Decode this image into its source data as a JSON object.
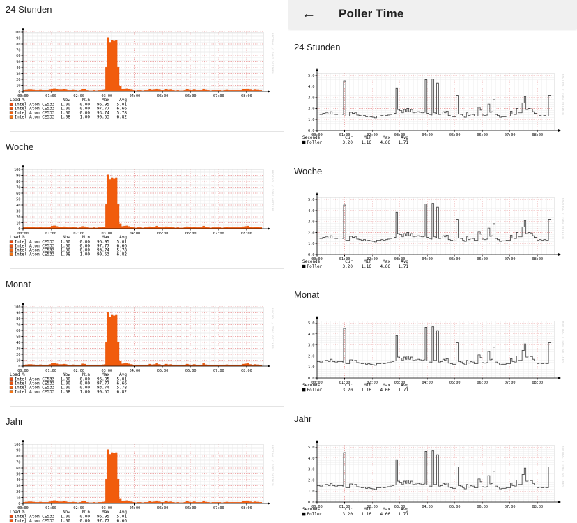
{
  "left_column": {
    "sections": [
      {
        "label": "24 Stunden"
      },
      {
        "label": "Woche"
      },
      {
        "label": "Monat"
      },
      {
        "label": "Jahr"
      }
    ]
  },
  "right_column": {
    "header": {
      "title": "Poller Time"
    },
    "sections": [
      {
        "label": "24 Stunden"
      },
      {
        "label": "Woche"
      },
      {
        "label": "Monat"
      },
      {
        "label": "Jahr"
      }
    ]
  },
  "icons": {
    "back": "←"
  },
  "chart_data": [
    {
      "id": "cpu-load",
      "type": "area",
      "title": "",
      "legend_title": "Load %",
      "legend_columns": [
        "Now",
        "Min",
        "Max",
        "Avg"
      ],
      "legend_rows": [
        {
          "name": "Intel Atom CE533",
          "color": "#e9490e",
          "values": [
            "1.00",
            "0.00",
            "96.95",
            "5.01"
          ]
        },
        {
          "name": "Intel Atom CE533",
          "color": "#ee5410",
          "values": [
            "1.00",
            "0.00",
            "97.77",
            "6.66"
          ]
        },
        {
          "name": "Intel Atom CE533",
          "color": "#f16312",
          "values": [
            "1.00",
            "0.00",
            "93.74",
            "5.78"
          ]
        },
        {
          "name": "Intel Atom CE533",
          "color": "#f57717",
          "values": [
            "1.08",
            "1.00",
            "90.53",
            "6.82"
          ]
        }
      ],
      "fill_color": "#f15c0d",
      "ylim": [
        0,
        100
      ],
      "yticks": [
        0,
        10,
        20,
        30,
        40,
        50,
        60,
        70,
        80,
        90,
        100
      ],
      "x_range_hours": [
        0,
        8.6
      ],
      "xtick_labels": [
        "00:00",
        "01:00",
        "02:00",
        "03:00",
        "04:00",
        "05:00",
        "06:00",
        "07:00",
        "08:00"
      ],
      "grid": true,
      "legend_position": "bottom",
      "watermark": "RRDTOOL / TOBI OETIKER",
      "points": [
        [
          0.0,
          2
        ],
        [
          0.08,
          2.5
        ],
        [
          0.17,
          3
        ],
        [
          0.25,
          3
        ],
        [
          0.33,
          2.5
        ],
        [
          0.42,
          2
        ],
        [
          0.5,
          2
        ],
        [
          0.58,
          2.5
        ],
        [
          0.67,
          2
        ],
        [
          0.75,
          2
        ],
        [
          0.83,
          2
        ],
        [
          0.92,
          3
        ],
        [
          1.0,
          4.5
        ],
        [
          1.08,
          5
        ],
        [
          1.17,
          4
        ],
        [
          1.25,
          3
        ],
        [
          1.33,
          3
        ],
        [
          1.42,
          3.5
        ],
        [
          1.5,
          3
        ],
        [
          1.58,
          2
        ],
        [
          1.67,
          2
        ],
        [
          1.75,
          2.5
        ],
        [
          1.83,
          2
        ],
        [
          1.92,
          1.5
        ],
        [
          2.0,
          2
        ],
        [
          2.08,
          4
        ],
        [
          2.17,
          3.5
        ],
        [
          2.25,
          2
        ],
        [
          2.33,
          1.5
        ],
        [
          2.42,
          1.5
        ],
        [
          2.5,
          2
        ],
        [
          2.58,
          1.5
        ],
        [
          2.67,
          2
        ],
        [
          2.75,
          2
        ],
        [
          2.83,
          2.5
        ],
        [
          2.9,
          3
        ],
        [
          2.95,
          41
        ],
        [
          3.0,
          91
        ],
        [
          3.08,
          83
        ],
        [
          3.15,
          86
        ],
        [
          3.22,
          85
        ],
        [
          3.3,
          86
        ],
        [
          3.37,
          41
        ],
        [
          3.44,
          8.5
        ],
        [
          3.52,
          4
        ],
        [
          3.6,
          4.5
        ],
        [
          3.68,
          5
        ],
        [
          3.75,
          4
        ],
        [
          3.83,
          3
        ],
        [
          3.92,
          2
        ],
        [
          4.0,
          1.5
        ],
        [
          4.08,
          2
        ],
        [
          4.17,
          2
        ],
        [
          4.25,
          1.5
        ],
        [
          4.33,
          2
        ],
        [
          4.42,
          2
        ],
        [
          4.5,
          3.5
        ],
        [
          4.58,
          2.5
        ],
        [
          4.67,
          3
        ],
        [
          4.75,
          4.5
        ],
        [
          4.83,
          3
        ],
        [
          4.92,
          2
        ],
        [
          5.0,
          2
        ],
        [
          5.08,
          3.5
        ],
        [
          5.17,
          2.5
        ],
        [
          5.25,
          3
        ],
        [
          5.33,
          2
        ],
        [
          5.42,
          1.5
        ],
        [
          5.5,
          2
        ],
        [
          5.58,
          1.5
        ],
        [
          5.67,
          1.5
        ],
        [
          5.75,
          2
        ],
        [
          5.83,
          3.5
        ],
        [
          5.92,
          2.5
        ],
        [
          6.0,
          2
        ],
        [
          6.08,
          3
        ],
        [
          6.17,
          2
        ],
        [
          6.25,
          2
        ],
        [
          6.33,
          2
        ],
        [
          6.42,
          4.5
        ],
        [
          6.5,
          2.5
        ],
        [
          6.58,
          2
        ],
        [
          6.67,
          1.5
        ],
        [
          6.75,
          2
        ],
        [
          6.83,
          2
        ],
        [
          6.92,
          2
        ],
        [
          7.0,
          2
        ],
        [
          7.08,
          1.5
        ],
        [
          7.17,
          2
        ],
        [
          7.25,
          2.5
        ],
        [
          7.33,
          2
        ],
        [
          7.42,
          2
        ],
        [
          7.5,
          2
        ],
        [
          7.58,
          2
        ],
        [
          7.67,
          2
        ],
        [
          7.75,
          2
        ],
        [
          7.83,
          3.5
        ],
        [
          7.92,
          4
        ],
        [
          8.0,
          4.5
        ],
        [
          8.08,
          3
        ],
        [
          8.17,
          2
        ],
        [
          8.25,
          3
        ],
        [
          8.33,
          2.5
        ],
        [
          8.42,
          2
        ],
        [
          8.5,
          2
        ]
      ]
    },
    {
      "id": "poller-time",
      "type": "line",
      "title": "",
      "legend_title": "Seconds",
      "legend_columns": [
        "Cur",
        "Min",
        "Max",
        "Avg"
      ],
      "legend_rows": [
        {
          "name": "Poller",
          "color": "#000000",
          "values": [
            "3.20",
            "1.16",
            "4.66",
            "1.71"
          ]
        }
      ],
      "line_color": "#3c3c3c",
      "ylim": [
        0,
        5.2
      ],
      "yticks": [
        "0.0",
        "1.0",
        "2.0",
        "3.0",
        "4.0",
        "5.0"
      ],
      "x_range_hours": [
        0,
        8.6
      ],
      "xtick_labels": [
        "00:00",
        "01:00",
        "02:00",
        "03:00",
        "04:00",
        "05:00",
        "06:00",
        "07:00",
        "08:00"
      ],
      "grid": true,
      "legend_position": "bottom",
      "watermark": "RRDTOOL / TOBI OETIKER",
      "points": [
        [
          0.0,
          1.5
        ],
        [
          0.1,
          1.45
        ],
        [
          0.2,
          1.55
        ],
        [
          0.3,
          1.6
        ],
        [
          0.4,
          1.5
        ],
        [
          0.48,
          1.7
        ],
        [
          0.55,
          1.5
        ],
        [
          0.65,
          1.45
        ],
        [
          0.75,
          1.5
        ],
        [
          0.85,
          1.5
        ],
        [
          0.93,
          1.45
        ],
        [
          0.96,
          4.5
        ],
        [
          1.04,
          1.3
        ],
        [
          1.12,
          1.3
        ],
        [
          1.18,
          1.65
        ],
        [
          1.28,
          1.55
        ],
        [
          1.36,
          1.6
        ],
        [
          1.44,
          1.4
        ],
        [
          1.52,
          1.35
        ],
        [
          1.6,
          1.3
        ],
        [
          1.68,
          1.35
        ],
        [
          1.76,
          1.25
        ],
        [
          1.84,
          1.3
        ],
        [
          1.92,
          1.25
        ],
        [
          2.0,
          1.2
        ],
        [
          2.08,
          1.15
        ],
        [
          2.16,
          1.3
        ],
        [
          2.24,
          1.3
        ],
        [
          2.32,
          1.35
        ],
        [
          2.4,
          1.3
        ],
        [
          2.48,
          1.35
        ],
        [
          2.56,
          1.4
        ],
        [
          2.64,
          1.45
        ],
        [
          2.72,
          1.5
        ],
        [
          2.8,
          1.55
        ],
        [
          2.86,
          3.85
        ],
        [
          2.92,
          1.9
        ],
        [
          3.0,
          1.8
        ],
        [
          3.08,
          1.6
        ],
        [
          3.14,
          1.9
        ],
        [
          3.2,
          1.7
        ],
        [
          3.26,
          2.0
        ],
        [
          3.33,
          1.7
        ],
        [
          3.4,
          1.9
        ],
        [
          3.47,
          1.6
        ],
        [
          3.55,
          1.65
        ],
        [
          3.63,
          1.7
        ],
        [
          3.71,
          1.65
        ],
        [
          3.79,
          1.6
        ],
        [
          3.87,
          1.65
        ],
        [
          3.92,
          4.6
        ],
        [
          3.99,
          1.55
        ],
        [
          4.06,
          1.45
        ],
        [
          4.13,
          1.4
        ],
        [
          4.17,
          4.65
        ],
        [
          4.24,
          1.6
        ],
        [
          4.3,
          1.55
        ],
        [
          4.34,
          4.3
        ],
        [
          4.41,
          1.45
        ],
        [
          4.49,
          1.5
        ],
        [
          4.56,
          1.7
        ],
        [
          4.62,
          1.6
        ],
        [
          4.68,
          1.75
        ],
        [
          4.76,
          1.35
        ],
        [
          4.84,
          1.3
        ],
        [
          4.92,
          1.25
        ],
        [
          5.0,
          1.25
        ],
        [
          5.05,
          3.2
        ],
        [
          5.12,
          1.5
        ],
        [
          5.2,
          1.45
        ],
        [
          5.28,
          1.3
        ],
        [
          5.34,
          1.2
        ],
        [
          5.42,
          1.6
        ],
        [
          5.48,
          1.35
        ],
        [
          5.56,
          1.5
        ],
        [
          5.62,
          1.45
        ],
        [
          5.7,
          1.3
        ],
        [
          5.78,
          1.3
        ],
        [
          5.84,
          2.1
        ],
        [
          5.92,
          1.85
        ],
        [
          5.98,
          1.4
        ],
        [
          6.06,
          1.35
        ],
        [
          6.14,
          1.4
        ],
        [
          6.2,
          2.4
        ],
        [
          6.27,
          1.65
        ],
        [
          6.33,
          1.7
        ],
        [
          6.39,
          2.8
        ],
        [
          6.46,
          1.45
        ],
        [
          6.54,
          1.35
        ],
        [
          6.62,
          1.2
        ],
        [
          6.7,
          1.25
        ],
        [
          6.78,
          1.25
        ],
        [
          6.86,
          1.3
        ],
        [
          6.94,
          1.3
        ],
        [
          7.02,
          1.75
        ],
        [
          7.08,
          1.5
        ],
        [
          7.16,
          1.45
        ],
        [
          7.24,
          2.0
        ],
        [
          7.3,
          1.6
        ],
        [
          7.38,
          1.6
        ],
        [
          7.44,
          2.5
        ],
        [
          7.52,
          3.1
        ],
        [
          7.58,
          1.9
        ],
        [
          7.66,
          2.0
        ],
        [
          7.74,
          1.95
        ],
        [
          7.82,
          1.7
        ],
        [
          7.9,
          1.55
        ],
        [
          7.98,
          1.3
        ],
        [
          8.06,
          1.35
        ],
        [
          8.14,
          1.3
        ],
        [
          8.22,
          1.35
        ],
        [
          8.3,
          1.3
        ],
        [
          8.4,
          3.2
        ],
        [
          8.5,
          3.2
        ]
      ]
    }
  ]
}
